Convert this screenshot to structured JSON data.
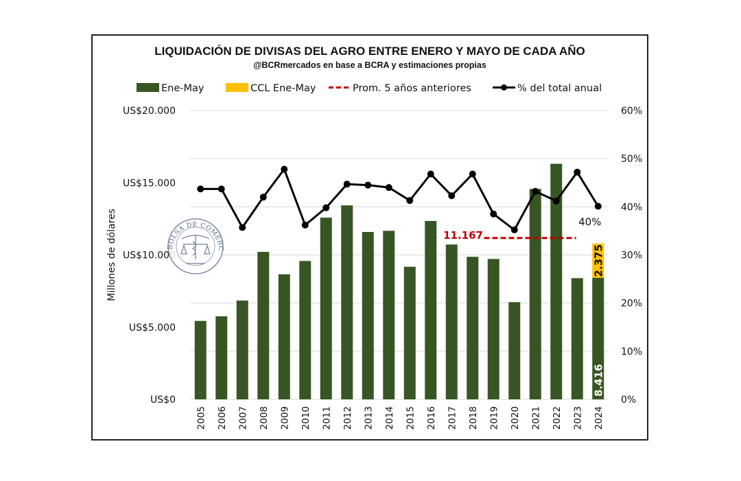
{
  "chart_data": {
    "type": "bar",
    "title": "LIQUIDACIÓN DE DIVISAS DEL AGRO ENTRE ENERO Y MAYO DE CADA AÑO",
    "subtitle": "@BCRmercados en base a BCRA y estimaciones propias",
    "ylabel": "Millones de dólares",
    "ylabel_right": "",
    "xlabel": "",
    "ylim": [
      0,
      20000
    ],
    "ylim_right": [
      0,
      0.6
    ],
    "grid": true,
    "legend_placement": "top",
    "yticks": [
      0,
      5000,
      10000,
      15000,
      20000
    ],
    "ytick_labels": [
      "US$0",
      "US$5.000",
      "US$10.000",
      "US$15.000",
      "US$20.000"
    ],
    "yticks_right": [
      0,
      0.1,
      0.2,
      0.3,
      0.4,
      0.5,
      0.6
    ],
    "ytick_labels_right": [
      "0%",
      "10%",
      "20%",
      "30%",
      "40%",
      "50%",
      "60%"
    ],
    "categories": [
      "2005",
      "2006",
      "2007",
      "2008",
      "2009",
      "2010",
      "2011",
      "2012",
      "2013",
      "2014",
      "2015",
      "2016",
      "2017",
      "2018",
      "2019",
      "2020",
      "2021",
      "2022",
      "2023",
      "2024"
    ],
    "legend": [
      {
        "name": "Ene-May",
        "kind": "bar",
        "color": "#375623"
      },
      {
        "name": "CCL Ene-May",
        "kind": "bar",
        "color": "#FFC000"
      },
      {
        "name": "Prom. 5 años anteriores",
        "kind": "dashed-line",
        "color": "#C00000"
      },
      {
        "name": "% del total anual",
        "kind": "line-marker",
        "color": "#000000"
      }
    ],
    "series": [
      {
        "name": "Ene-May",
        "type": "bar",
        "axis": "left",
        "color": "#375623",
        "values": [
          5430,
          5750,
          6840,
          10210,
          8660,
          9580,
          12580,
          13430,
          11590,
          11670,
          9180,
          12350,
          10720,
          9870,
          9720,
          6730,
          14570,
          16310,
          8390,
          8416
        ]
      },
      {
        "name": "CCL Ene-May",
        "type": "bar-stacked",
        "axis": "left",
        "color": "#FFC000",
        "values": [
          0,
          0,
          0,
          0,
          0,
          0,
          0,
          0,
          0,
          0,
          0,
          0,
          0,
          0,
          0,
          0,
          0,
          0,
          0,
          2375
        ]
      },
      {
        "name": "Prom. 5 años anteriores",
        "type": "reference-line",
        "axis": "left",
        "color": "#C00000",
        "value": 11167,
        "from_category": "2019",
        "to_category": "2022",
        "label": "11.167"
      },
      {
        "name": "% del total anual",
        "type": "line",
        "axis": "right",
        "color": "#000000",
        "values": [
          0.437,
          0.437,
          0.357,
          0.42,
          0.478,
          0.362,
          0.398,
          0.447,
          0.445,
          0.44,
          0.413,
          0.468,
          0.423,
          0.468,
          0.385,
          0.352,
          0.432,
          0.412,
          0.472,
          0.401
        ]
      }
    ],
    "annotations": [
      {
        "text": "8.416",
        "category": "2024",
        "series": "Ene-May",
        "color": "#ffffff"
      },
      {
        "text": "2.375",
        "category": "2024",
        "series": "CCL Ene-May",
        "color": "#111111"
      },
      {
        "text": "40%",
        "category": "2024",
        "series": "% del total anual",
        "color": "#111111"
      },
      {
        "text": "11.167",
        "series": "Prom. 5 años anteriores",
        "color": "#C00000"
      }
    ]
  },
  "watermark": {
    "text": "BOLSA DE COMERCIO DE ROSARIO",
    "icon": "caduceus-scales-seal-icon"
  }
}
